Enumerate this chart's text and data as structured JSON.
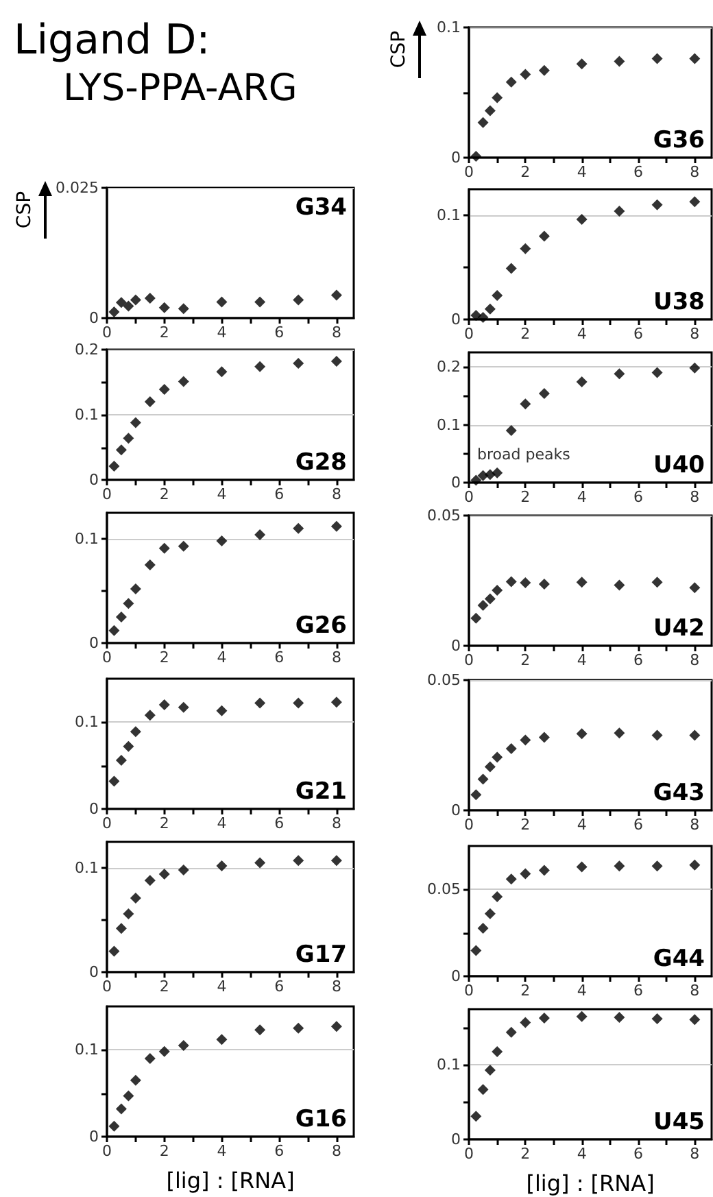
{
  "chart_data": [
    {
      "type": "other",
      "title": "Ligand D:",
      "subtitle": "LYS-PPA-ARG"
    },
    {
      "type": "scatter",
      "title": "G34",
      "ylabel": "CSP",
      "marker": "diamond",
      "color": "#000000",
      "grid": "y",
      "xlim": [
        0,
        8.6
      ],
      "xticks": [
        0,
        {
          "value": 1,
          "label": null
        },
        2,
        {
          "value": 3,
          "label": null
        },
        4,
        {
          "value": 5,
          "label": null
        },
        6,
        {
          "value": 7,
          "label": null
        },
        8
      ],
      "ylim": [
        0,
        0.025
      ],
      "yticks": [
        0,
        0.025
      ],
      "x": [
        0.25,
        0.5,
        0.75,
        1,
        1.5,
        2,
        2.67,
        4,
        5.33,
        6.67,
        8
      ],
      "values": [
        0.0012,
        0.003,
        0.0023,
        0.0035,
        0.0038,
        0.002,
        0.0018,
        0.0031,
        0.0031,
        0.0035,
        0.0044
      ]
    },
    {
      "type": "scatter",
      "title": "G28",
      "marker": "diamond",
      "color": "#000000",
      "grid": "y",
      "xlim": [
        0,
        8.6
      ],
      "xticks": [
        0,
        {
          "value": 1,
          "label": null
        },
        2,
        {
          "value": 3,
          "label": null
        },
        4,
        {
          "value": 5,
          "label": null
        },
        6,
        {
          "value": 7,
          "label": null
        },
        8
      ],
      "ylim": [
        0,
        0.2
      ],
      "yticks": [
        0,
        {
          "value": 0.05,
          "label": null
        },
        0.1,
        {
          "value": 0.15,
          "label": null
        },
        0.2
      ],
      "x": [
        0.25,
        0.5,
        0.75,
        1,
        1.5,
        2,
        2.67,
        4,
        5.33,
        6.67,
        8
      ],
      "values": [
        0.021,
        0.046,
        0.064,
        0.088,
        0.12,
        0.139,
        0.151,
        0.166,
        0.174,
        0.179,
        0.182
      ]
    },
    {
      "type": "scatter",
      "title": "G26",
      "marker": "diamond",
      "color": "#000000",
      "grid": "y",
      "xlim": [
        0,
        8.6
      ],
      "xticks": [
        0,
        {
          "value": 1,
          "label": null
        },
        2,
        {
          "value": 3,
          "label": null
        },
        4,
        {
          "value": 5,
          "label": null
        },
        6,
        {
          "value": 7,
          "label": null
        },
        8
      ],
      "ylim": [
        0,
        0.125
      ],
      "yticks": [
        0,
        {
          "value": 0.05,
          "label": null
        },
        0.1
      ],
      "x": [
        0.25,
        0.5,
        0.75,
        1,
        1.5,
        2,
        2.67,
        4,
        5.33,
        6.67,
        8
      ],
      "values": [
        0.012,
        0.025,
        0.038,
        0.052,
        0.075,
        0.091,
        0.093,
        0.098,
        0.104,
        0.11,
        0.112
      ]
    },
    {
      "type": "scatter",
      "title": "G21",
      "marker": "diamond",
      "color": "#000000",
      "grid": "y",
      "xlim": [
        0,
        8.6
      ],
      "xticks": [
        0,
        {
          "value": 1,
          "label": null
        },
        2,
        {
          "value": 3,
          "label": null
        },
        4,
        {
          "value": 5,
          "label": null
        },
        6,
        {
          "value": 7,
          "label": null
        },
        8
      ],
      "ylim": [
        0,
        0.15
      ],
      "yticks": [
        0,
        {
          "value": 0.05,
          "label": null
        },
        0.1
      ],
      "x": [
        0.25,
        0.5,
        0.75,
        1,
        1.5,
        2,
        2.67,
        4,
        5.33,
        6.67,
        8
      ],
      "values": [
        0.032,
        0.056,
        0.072,
        0.089,
        0.108,
        0.12,
        0.117,
        0.113,
        0.122,
        0.122,
        0.123
      ]
    },
    {
      "type": "scatter",
      "title": "G17",
      "marker": "diamond",
      "color": "#000000",
      "grid": "y",
      "xlim": [
        0,
        8.6
      ],
      "xticks": [
        0,
        {
          "value": 1,
          "label": null
        },
        2,
        {
          "value": 3,
          "label": null
        },
        4,
        {
          "value": 5,
          "label": null
        },
        6,
        {
          "value": 7,
          "label": null
        },
        8
      ],
      "ylim": [
        0,
        0.125
      ],
      "yticks": [
        0,
        {
          "value": 0.05,
          "label": null
        },
        0.1
      ],
      "x": [
        0.25,
        0.5,
        0.75,
        1,
        1.5,
        2,
        2.67,
        4,
        5.33,
        6.67,
        8
      ],
      "values": [
        0.02,
        0.042,
        0.056,
        0.071,
        0.088,
        0.094,
        0.098,
        0.102,
        0.105,
        0.107,
        0.107
      ]
    },
    {
      "type": "scatter",
      "title": "G16",
      "xlabel": "[lig] : [RNA]",
      "marker": "diamond",
      "color": "#000000",
      "grid": "y",
      "xlim": [
        0,
        8.6
      ],
      "xticks": [
        0,
        {
          "value": 1,
          "label": null
        },
        2,
        {
          "value": 3,
          "label": null
        },
        4,
        {
          "value": 5,
          "label": null
        },
        6,
        {
          "value": 7,
          "label": null
        },
        8
      ],
      "ylim": [
        0,
        0.15
      ],
      "yticks": [
        0,
        {
          "value": 0.05,
          "label": null
        },
        0.1
      ],
      "x": [
        0.25,
        0.5,
        0.75,
        1,
        1.5,
        2,
        2.67,
        4,
        5.33,
        6.67,
        8
      ],
      "values": [
        0.012,
        0.032,
        0.047,
        0.065,
        0.09,
        0.098,
        0.105,
        0.112,
        0.123,
        0.125,
        0.127
      ]
    },
    {
      "type": "scatter",
      "title": "G36",
      "ylabel": "CSP",
      "marker": "diamond",
      "color": "#000000",
      "grid": "y",
      "xlim": [
        0,
        8.6
      ],
      "xticks": [
        0,
        {
          "value": 1,
          "label": null
        },
        2,
        {
          "value": 3,
          "label": null
        },
        4,
        {
          "value": 5,
          "label": null
        },
        6,
        {
          "value": 7,
          "label": null
        },
        8
      ],
      "ylim": [
        0,
        0.1
      ],
      "yticks": [
        0,
        {
          "value": 0.05,
          "label": null
        },
        0.1
      ],
      "x": [
        0.25,
        0.5,
        0.75,
        1,
        1.5,
        2,
        2.67,
        4,
        5.33,
        6.67,
        8
      ],
      "values": [
        0.001,
        0.027,
        0.036,
        0.046,
        0.058,
        0.064,
        0.067,
        0.072,
        0.074,
        0.076,
        0.076
      ]
    },
    {
      "type": "scatter",
      "title": "U38",
      "marker": "diamond",
      "color": "#000000",
      "grid": "y",
      "xlim": [
        0,
        8.6
      ],
      "xticks": [
        0,
        {
          "value": 1,
          "label": null
        },
        2,
        {
          "value": 3,
          "label": null
        },
        4,
        {
          "value": 5,
          "label": null
        },
        6,
        {
          "value": 7,
          "label": null
        },
        8
      ],
      "ylim": [
        0,
        0.125
      ],
      "yticks": [
        0,
        {
          "value": 0.05,
          "label": null
        },
        0.1
      ],
      "x": [
        0.25,
        0.5,
        0.75,
        1,
        1.5,
        2,
        2.67,
        4,
        5.33,
        6.67,
        8
      ],
      "values": [
        0.004,
        0.002,
        0.01,
        0.023,
        0.049,
        0.068,
        0.08,
        0.096,
        0.104,
        0.11,
        0.113
      ]
    },
    {
      "type": "scatter",
      "title": "U40",
      "annotations": [
        "broad peaks"
      ],
      "marker": "diamond",
      "color": "#000000",
      "grid": "y",
      "xlim": [
        0,
        8.6
      ],
      "xticks": [
        0,
        {
          "value": 1,
          "label": null
        },
        2,
        {
          "value": 3,
          "label": null
        },
        4,
        {
          "value": 5,
          "label": null
        },
        6,
        {
          "value": 7,
          "label": null
        },
        8
      ],
      "ylim": [
        0,
        0.225
      ],
      "yticks": [
        0,
        {
          "value": 0.05,
          "label": null
        },
        0.1,
        {
          "value": 0.15,
          "label": null
        },
        0.2
      ],
      "x": [
        0.25,
        0.5,
        0.75,
        1,
        1.5,
        2,
        2.67,
        4,
        5.33,
        6.67,
        8
      ],
      "values": [
        0.004,
        0.012,
        0.014,
        0.017,
        0.09,
        0.136,
        0.154,
        0.174,
        0.188,
        0.19,
        0.198
      ]
    },
    {
      "type": "scatter",
      "title": "U42",
      "marker": "diamond",
      "color": "#000000",
      "grid": "y",
      "xlim": [
        0,
        8.6
      ],
      "xticks": [
        0,
        {
          "value": 1,
          "label": null
        },
        2,
        {
          "value": 3,
          "label": null
        },
        4,
        {
          "value": 5,
          "label": null
        },
        6,
        {
          "value": 7,
          "label": null
        },
        8
      ],
      "ylim": [
        0,
        0.05
      ],
      "yticks": [
        0,
        0.05
      ],
      "x": [
        0.25,
        0.5,
        0.75,
        1,
        1.5,
        2,
        2.67,
        4,
        5.33,
        6.67,
        8
      ],
      "values": [
        0.0106,
        0.0155,
        0.018,
        0.0213,
        0.0246,
        0.0242,
        0.0237,
        0.0244,
        0.0233,
        0.0244,
        0.0223
      ]
    },
    {
      "type": "scatter",
      "title": "G43",
      "marker": "diamond",
      "color": "#000000",
      "grid": "y",
      "xlim": [
        0,
        8.6
      ],
      "xticks": [
        0,
        {
          "value": 1,
          "label": null
        },
        2,
        {
          "value": 3,
          "label": null
        },
        4,
        {
          "value": 5,
          "label": null
        },
        6,
        {
          "value": 7,
          "label": null
        },
        8
      ],
      "ylim": [
        0,
        0.05
      ],
      "yticks": [
        0,
        0.05
      ],
      "x": [
        0.25,
        0.5,
        0.75,
        1,
        1.5,
        2,
        2.67,
        4,
        5.33,
        6.67,
        8
      ],
      "values": [
        0.006,
        0.012,
        0.0167,
        0.0204,
        0.0237,
        0.027,
        0.028,
        0.0294,
        0.0297,
        0.0288,
        0.0288
      ]
    },
    {
      "type": "scatter",
      "title": "G44",
      "marker": "diamond",
      "color": "#000000",
      "grid": "y",
      "xlim": [
        0,
        8.6
      ],
      "xticks": [
        0,
        {
          "value": 1,
          "label": null
        },
        2,
        {
          "value": 3,
          "label": null
        },
        4,
        {
          "value": 5,
          "label": null
        },
        6,
        {
          "value": 7,
          "label": null
        },
        8
      ],
      "ylim": [
        0,
        0.075
      ],
      "yticks": [
        0,
        {
          "value": 0.025,
          "label": null
        },
        0.05
      ],
      "x": [
        0.25,
        0.5,
        0.75,
        1,
        1.5,
        2,
        2.67,
        4,
        5.33,
        6.67,
        8
      ],
      "values": [
        0.0148,
        0.0276,
        0.036,
        0.0458,
        0.056,
        0.059,
        0.061,
        0.063,
        0.0635,
        0.0635,
        0.064
      ]
    },
    {
      "type": "scatter",
      "title": "U45",
      "xlabel": "[lig] : [RNA]",
      "marker": "diamond",
      "color": "#000000",
      "grid": "y",
      "xlim": [
        0,
        8.6
      ],
      "xticks": [
        0,
        {
          "value": 1,
          "label": null
        },
        2,
        {
          "value": 3,
          "label": null
        },
        4,
        {
          "value": 5,
          "label": null
        },
        6,
        {
          "value": 7,
          "label": null
        },
        8
      ],
      "ylim": [
        0,
        0.175
      ],
      "yticks": [
        0,
        {
          "value": 0.05,
          "label": null
        },
        0.1,
        {
          "value": 0.15,
          "label": null
        }
      ],
      "x": [
        0.25,
        0.5,
        0.75,
        1,
        1.5,
        2,
        2.67,
        4,
        5.33,
        6.67,
        8
      ],
      "values": [
        0.031,
        0.067,
        0.093,
        0.118,
        0.144,
        0.157,
        0.163,
        0.165,
        0.164,
        0.162,
        0.161
      ]
    }
  ]
}
